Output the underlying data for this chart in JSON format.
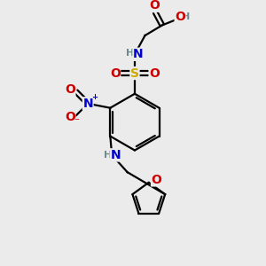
{
  "bg_color": "#ebebeb",
  "atom_colors": {
    "C": "#000000",
    "H": "#6e8b8b",
    "N": "#0000cc",
    "O": "#cc0000",
    "S": "#ccaa00"
  },
  "figsize": [
    3.0,
    3.0
  ],
  "dpi": 100,
  "bond_lw": 1.6,
  "font_size": 8.5
}
